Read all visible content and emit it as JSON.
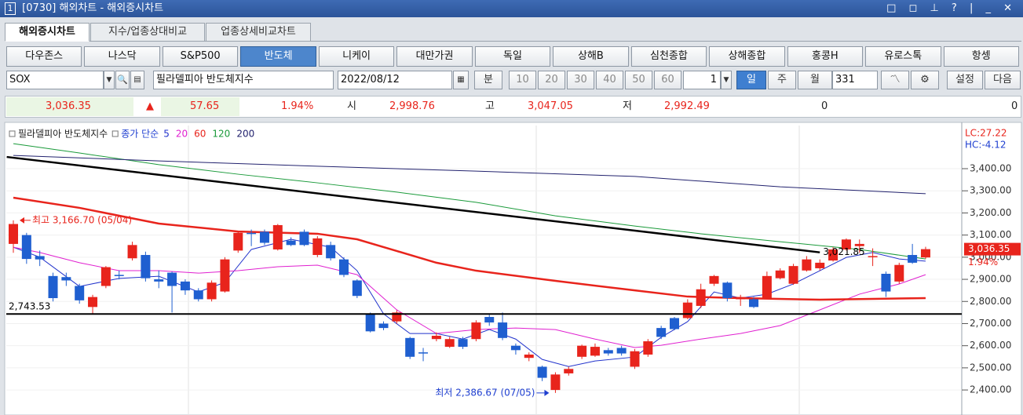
{
  "window": {
    "number": "1",
    "title": "[0730] 해외차트 - 해외증시차트"
  },
  "tabs": [
    "해외증시차트",
    "지수/업종상대비교",
    "업종상세비교차트"
  ],
  "markets": [
    "다우존스",
    "나스닥",
    "S&P500",
    "반도체",
    "니케이",
    "대만가권",
    "독일",
    "상해B",
    "심천종합",
    "상해종합",
    "홍콩H",
    "유로스톡",
    "항셍"
  ],
  "controls": {
    "symbol": "SOX",
    "name": "필라델피아 반도체지수",
    "date": "2022/08/12",
    "minute": "분",
    "intervals": [
      "10",
      "20",
      "30",
      "40",
      "50",
      "60"
    ],
    "count": "1",
    "day": "일",
    "week": "주",
    "month": "월",
    "bars": "331",
    "settings": "설정",
    "next": "다음"
  },
  "quote": {
    "price": "3,036.35",
    "arrow": "▲",
    "change": "57.65",
    "rate": "1.94%",
    "open_label": "시",
    "open": "2,998.76",
    "high_label": "고",
    "high": "3,047.05",
    "low_label": "저",
    "low": "2,992.49",
    "volume": "0",
    "amount": "0"
  },
  "chart_data": {
    "type": "candlestick",
    "legend": {
      "name": "필라델피아 반도체지수",
      "ma_label": "종가 단순"
    },
    "up_color": "#e8241c",
    "down_color": "#1f5fd0",
    "open": [
      3060,
      3100,
      3005,
      2915,
      2910,
      2870,
      2775,
      2870,
      2920,
      2995,
      3010,
      2900,
      2930,
      2890,
      2850,
      2810,
      2845,
      3030,
      3110,
      3115,
      3035,
      3075,
      3115,
      3010,
      3055,
      2990,
      2895,
      2745,
      2700,
      2710,
      2635,
      2570,
      2630,
      2595,
      2630,
      2630,
      2730,
      2705,
      2600,
      2545,
      2505,
      2400,
      2475,
      2550,
      2555,
      2580,
      2590,
      2505,
      2560,
      2680,
      2725,
      2725,
      2780,
      2880,
      2885,
      2810,
      2810,
      2815,
      2905,
      2880,
      2940,
      2950,
      2985,
      3035,
      3050,
      3000,
      2925,
      2890,
      3010,
      2998.76
    ],
    "high": [
      3166.7,
      3110,
      3030,
      2930,
      2930,
      2880,
      2830,
      2960,
      2940,
      3070,
      3025,
      2940,
      2935,
      2900,
      2860,
      2895,
      3000,
      3120,
      3125,
      3125,
      3150,
      3090,
      3125,
      3095,
      3070,
      3000,
      2900,
      2750,
      2710,
      2760,
      2640,
      2590,
      2660,
      2640,
      2640,
      2715,
      2740,
      2750,
      2610,
      2570,
      2510,
      2480,
      2505,
      2605,
      2610,
      2590,
      2600,
      2585,
      2630,
      2690,
      2730,
      2810,
      2880,
      2920,
      2890,
      2830,
      2820,
      2935,
      2950,
      2970,
      3005,
      2990,
      3045,
      3085,
      3080,
      3040,
      2935,
      2975,
      3060,
      3047.05
    ],
    "low": [
      3020,
      2970,
      2960,
      2800,
      2870,
      2790,
      2743.53,
      2860,
      2900,
      2985,
      2890,
      2860,
      2750,
      2830,
      2800,
      2800,
      2840,
      3020,
      3050,
      3055,
      3030,
      3050,
      3050,
      3000,
      2985,
      2910,
      2815,
      2660,
      2670,
      2700,
      2540,
      2530,
      2620,
      2590,
      2585,
      2620,
      2690,
      2625,
      2560,
      2530,
      2440,
      2386.67,
      2465,
      2540,
      2550,
      2555,
      2555,
      2495,
      2550,
      2630,
      2670,
      2720,
      2770,
      2870,
      2800,
      2780,
      2770,
      2810,
      2900,
      2875,
      2935,
      2940,
      2980,
      3030,
      3020,
      2960,
      2820,
      2880,
      2970,
      2992.49
    ],
    "close": [
      3150,
      2992,
      2990,
      2815,
      2895,
      2805,
      2820,
      2955,
      2915,
      3055,
      2905,
      2890,
      2870,
      2850,
      2810,
      2885,
      2990,
      3110,
      3105,
      3065,
      3145,
      3055,
      3055,
      3085,
      2995,
      2920,
      2825,
      2665,
      2680,
      2750,
      2550,
      2565,
      2645,
      2630,
      2595,
      2705,
      2705,
      2635,
      2580,
      2560,
      2455,
      2470,
      2495,
      2600,
      2595,
      2565,
      2565,
      2575,
      2620,
      2640,
      2675,
      2795,
      2855,
      2915,
      2815,
      2820,
      2775,
      2915,
      2940,
      2960,
      2990,
      2975,
      3035,
      3080,
      3060,
      3005,
      2845,
      2965,
      2975,
      3036.35
    ],
    "ma": [
      {
        "name": "5",
        "color": "#2233cc",
        "width": 1,
        "x": [
          0,
          2,
          5,
          8,
          11,
          14,
          16,
          18,
          21,
          24,
          26,
          28,
          30,
          32,
          34,
          36,
          38,
          40,
          42,
          44,
          47,
          49,
          51,
          53,
          55,
          57,
          59,
          61,
          63,
          65,
          67,
          69
        ],
        "values": [
          3045,
          3000,
          2868,
          2904,
          2914,
          2843,
          2886,
          3035,
          3081,
          3045,
          2939,
          2744,
          2655,
          2655,
          2630,
          2673,
          2630,
          2538,
          2506,
          2531,
          2549,
          2638,
          2709,
          2843,
          2815,
          2833,
          2879,
          2939,
          2999,
          3021,
          2992,
          2982
        ]
      },
      {
        "name": "20",
        "color": "#e020d0",
        "width": 1,
        "x": [
          0,
          2,
          5,
          8,
          11,
          14,
          17,
          20,
          23,
          26,
          29,
          32,
          35,
          38,
          41,
          44,
          47,
          49,
          52,
          55,
          58,
          61,
          64,
          67,
          69
        ],
        "values": [
          3045,
          3021,
          2975,
          2939,
          2939,
          2928,
          2939,
          2957,
          2964,
          2921,
          2762,
          2655,
          2673,
          2680,
          2673,
          2630,
          2592,
          2602,
          2630,
          2655,
          2691,
          2762,
          2833,
          2879,
          2921
        ]
      },
      {
        "name": "60",
        "color": "#e8241c",
        "width": 2.5,
        "x": [
          0,
          5,
          11,
          17,
          23,
          26,
          29,
          32,
          35,
          41,
          47,
          51,
          55,
          61,
          69
        ],
        "values": [
          3269,
          3223,
          3152,
          3116,
          3106,
          3081,
          3028,
          2975,
          2939,
          2893,
          2850,
          2822,
          2815,
          2808,
          2815
        ]
      },
      {
        "name": "120",
        "color": "#1a9a3a",
        "width": 1,
        "x": [
          0,
          5,
          11,
          17,
          23,
          29,
          35,
          41,
          47,
          52,
          58,
          64,
          69
        ],
        "values": [
          3513,
          3471,
          3418,
          3375,
          3336,
          3294,
          3248,
          3187,
          3141,
          3106,
          3070,
          3035,
          2992
        ]
      },
      {
        "name": "200",
        "color": "#22226e",
        "width": 1,
        "x": [
          0,
          11,
          23,
          35,
          47,
          58,
          64,
          69
        ],
        "values": [
          3460,
          3435,
          3411,
          3389,
          3365,
          3318,
          3301,
          3287
        ]
      }
    ],
    "trendline": {
      "x": [
        -0.5,
        61
      ],
      "values": [
        3453,
        3021.85
      ],
      "label": "3,021.85"
    },
    "hline": {
      "value": 2743.53,
      "label": "2,743.53"
    },
    "annotations": [
      {
        "text": "최고 3,166.70 (05/04)",
        "x": 0,
        "value": 3166.7,
        "color": "#e8241c"
      },
      {
        "text": "최저 2,386.67 (07/05)",
        "x": 41,
        "value": 2386.67,
        "color": "#1f3fd0"
      }
    ],
    "last": {
      "value": 3036.35,
      "label": "3,036.35",
      "rate": "1.94%"
    },
    "lc": "LC:27.22",
    "hc": "HC:-4.12",
    "ylim": [
      2294,
      3595
    ],
    "yticks": [
      {
        "value": 2400,
        "label": "2,400.00"
      },
      {
        "value": 2500,
        "label": "2,500.00"
      },
      {
        "value": 2600,
        "label": "2,600.00"
      },
      {
        "value": 2700,
        "label": "2,700.00"
      },
      {
        "value": 2800,
        "label": "2,800.00"
      },
      {
        "value": 2900,
        "label": "2,900.00"
      },
      {
        "value": 3000,
        "label": "3,000.00"
      },
      {
        "value": 3100,
        "label": "3,100.00"
      },
      {
        "value": 3200,
        "label": "3,200.00"
      },
      {
        "value": 3300,
        "label": "3,300.00"
      },
      {
        "value": 3400,
        "label": "3,400.00"
      }
    ],
    "grid": true
  }
}
